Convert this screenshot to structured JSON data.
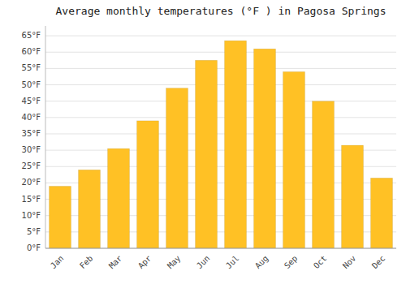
{
  "chart_data": {
    "type": "bar",
    "title": "Average monthly temperatures (°F ) in Pagosa Springs",
    "categories": [
      "Jan",
      "Feb",
      "Mar",
      "Apr",
      "May",
      "Jun",
      "Jul",
      "Aug",
      "Sep",
      "Oct",
      "Nov",
      "Dec"
    ],
    "values": [
      19,
      24,
      30.5,
      39,
      49,
      57.5,
      63.5,
      61,
      54,
      45,
      31.5,
      21.5
    ],
    "color": "#FFC125",
    "ylim": [
      0,
      68
    ],
    "yticks": [
      {
        "value": 0,
        "label": "0°F"
      },
      {
        "value": 5,
        "label": "5°F"
      },
      {
        "value": 10,
        "label": "10°F"
      },
      {
        "value": 15,
        "label": "15°F"
      },
      {
        "value": 20,
        "label": "20°F"
      },
      {
        "value": 25,
        "label": "25°F"
      },
      {
        "value": 30,
        "label": "30°F"
      },
      {
        "value": 35,
        "label": "35°F"
      },
      {
        "value": 40,
        "label": "40°F"
      },
      {
        "value": 45,
        "label": "45°F"
      },
      {
        "value": 50,
        "label": "50°F"
      },
      {
        "value": 55,
        "label": "55°F"
      },
      {
        "value": 60,
        "label": "60°F"
      },
      {
        "value": 65,
        "label": "65°F"
      }
    ],
    "grid": true
  }
}
